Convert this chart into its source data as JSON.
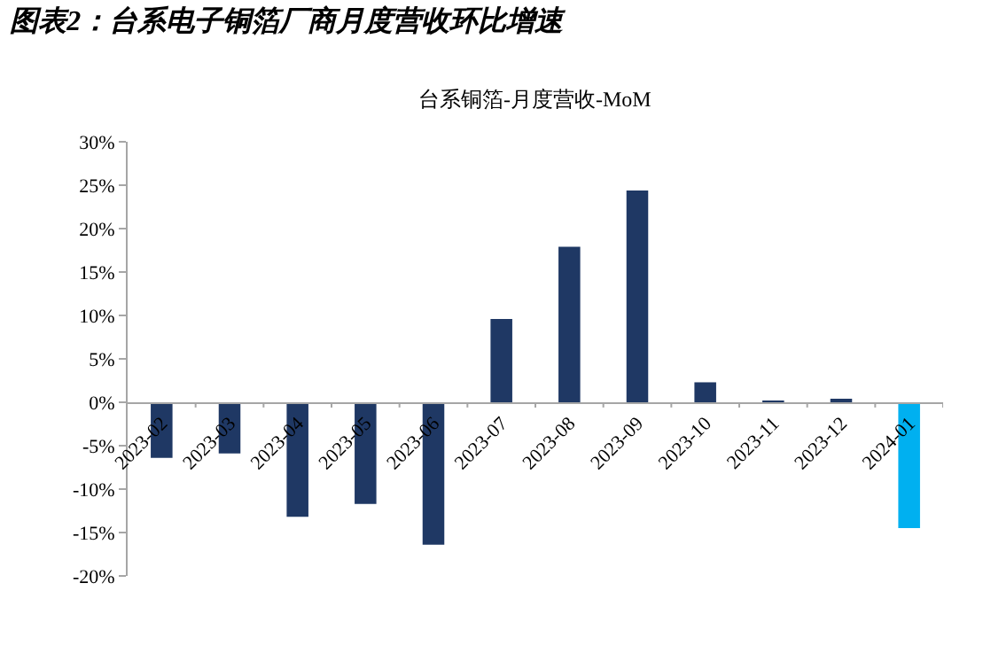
{
  "chart_data": {
    "type": "bar",
    "title": "图表2：台系电子铜箔厂商月度营收环比增速",
    "subtitle": "台系铜箔-月度营收-MoM",
    "categories": [
      "2023-02",
      "2023-03",
      "2023-04",
      "2023-05",
      "2023-06",
      "2023-07",
      "2023-08",
      "2023-09",
      "2023-10",
      "2023-11",
      "2023-12",
      "2024-01"
    ],
    "values": [
      -6.4,
      -5.9,
      -13.2,
      -11.7,
      -16.4,
      9.6,
      17.9,
      24.4,
      2.3,
      0.1,
      0.3,
      -14.5
    ],
    "colors": [
      "#1f3864",
      "#1f3864",
      "#1f3864",
      "#1f3864",
      "#1f3864",
      "#1f3864",
      "#1f3864",
      "#1f3864",
      "#1f3864",
      "#1f3864",
      "#1f3864",
      "#00b0f0"
    ],
    "ylim": [
      -20,
      30
    ],
    "yticks": [
      {
        "value": -20,
        "label": "-20%"
      },
      {
        "value": -15,
        "label": "-15%"
      },
      {
        "value": -10,
        "label": "-10%"
      },
      {
        "value": -5,
        "label": "-5%"
      },
      {
        "value": 0,
        "label": "0%"
      },
      {
        "value": 5,
        "label": "5%"
      },
      {
        "value": 10,
        "label": "10%"
      },
      {
        "value": 15,
        "label": "15%"
      },
      {
        "value": 20,
        "label": "20%"
      },
      {
        "value": 25,
        "label": "25%"
      },
      {
        "value": 30,
        "label": "30%"
      }
    ],
    "legend": false
  }
}
